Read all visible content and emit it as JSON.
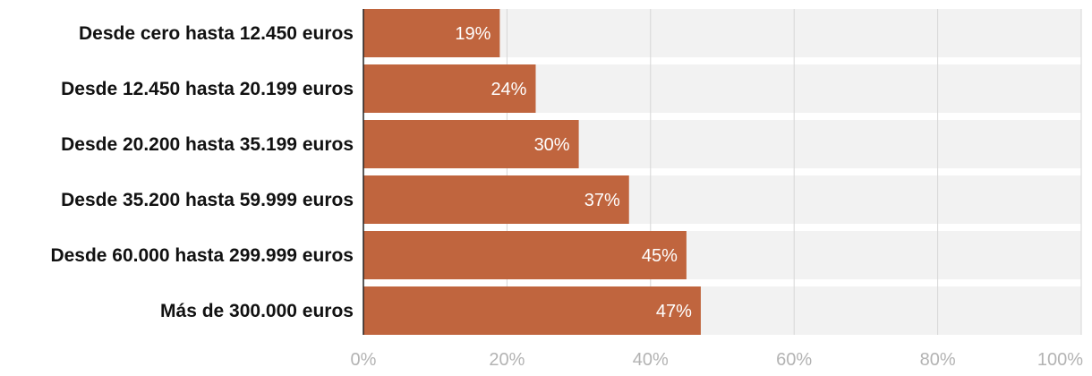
{
  "chart_data": {
    "type": "bar",
    "orientation": "horizontal",
    "categories": [
      "Desde cero hasta 12.450 euros",
      "Desde 12.450 hasta 20.199 euros",
      "Desde 20.200 hasta 35.199 euros",
      "Desde 35.200 hasta 59.999 euros",
      "Desde 60.000 hasta 299.999 euros",
      "Más de 300.000 euros"
    ],
    "values": [
      19,
      24,
      30,
      37,
      45,
      47
    ],
    "value_labels": [
      "19%",
      "24%",
      "30%",
      "37%",
      "45%",
      "47%"
    ],
    "x_ticks": [
      "0%",
      "20%",
      "40%",
      "60%",
      "80%",
      "100%"
    ],
    "xlim": [
      0,
      100
    ],
    "grid": true,
    "legend": "none",
    "colors": {
      "bar": "#c0653e",
      "track": "#f2f2f2",
      "grid": "#d6d6d6",
      "axis": "#222222",
      "value_text": "#ffffff",
      "tick_text": "#b3b3b3",
      "category_text": "#111111"
    }
  }
}
